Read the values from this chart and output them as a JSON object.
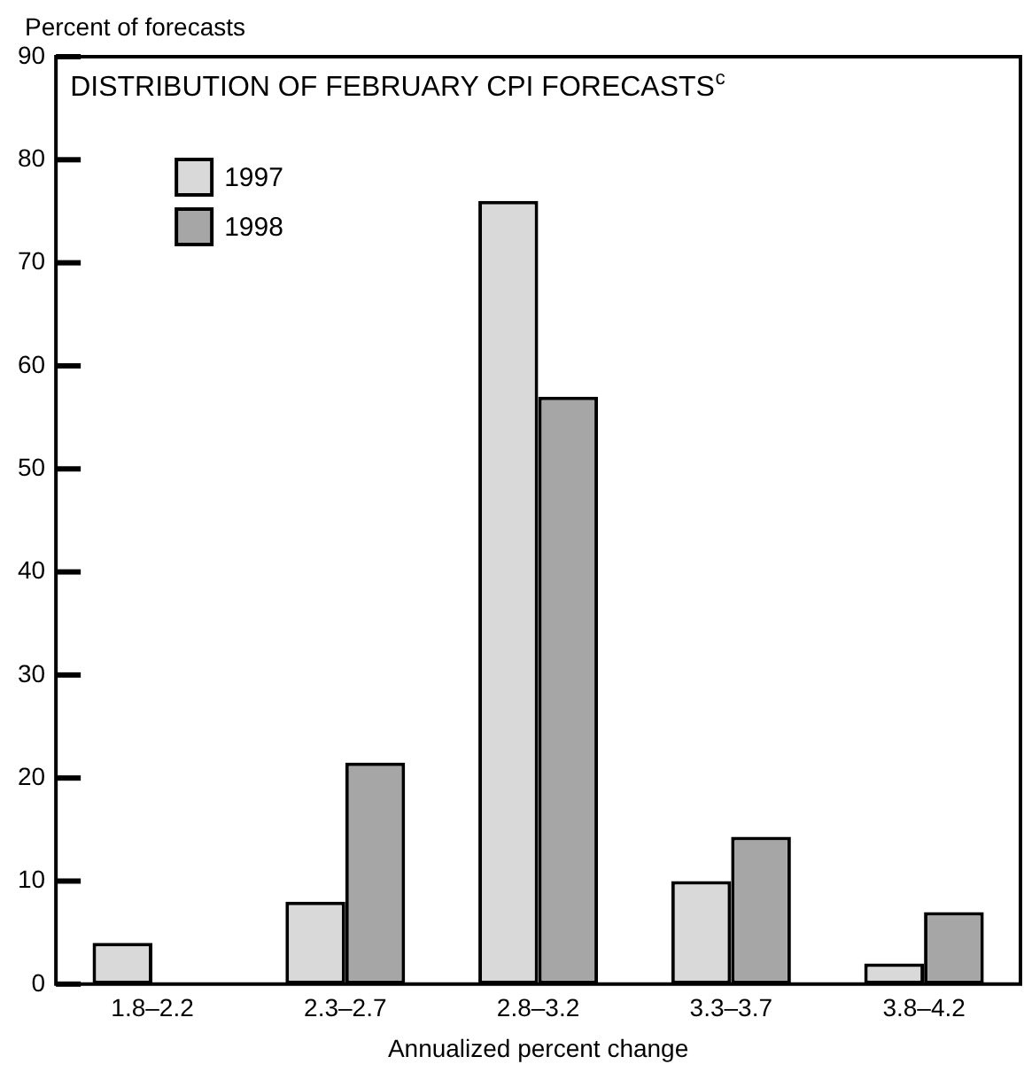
{
  "chart_data": {
    "type": "bar",
    "title": "DISTRIBUTION OF FEBRUARY CPI FORECASTS$^{c}$",
    "xlabel": "Annualized percent change",
    "ylabel": "Percent of forecasts",
    "categories": [
      "1.8–2.2",
      "2.3–2.7",
      "2.8–3.2",
      "3.3–3.7",
      "3.8–4.2"
    ],
    "series": [
      {
        "name": "1997",
        "color": "#d9d9d9",
        "values": [
          4,
          8,
          76,
          10,
          2
        ]
      },
      {
        "name": "1998",
        "color": "#a6a6a6",
        "values": [
          null,
          21.5,
          57,
          14.3,
          7
        ]
      }
    ],
    "ylim": [
      0,
      90
    ],
    "yticks": [
      0,
      10,
      20,
      30,
      40,
      50,
      60,
      70,
      80,
      90
    ],
    "grid": false,
    "legend": "top left"
  }
}
